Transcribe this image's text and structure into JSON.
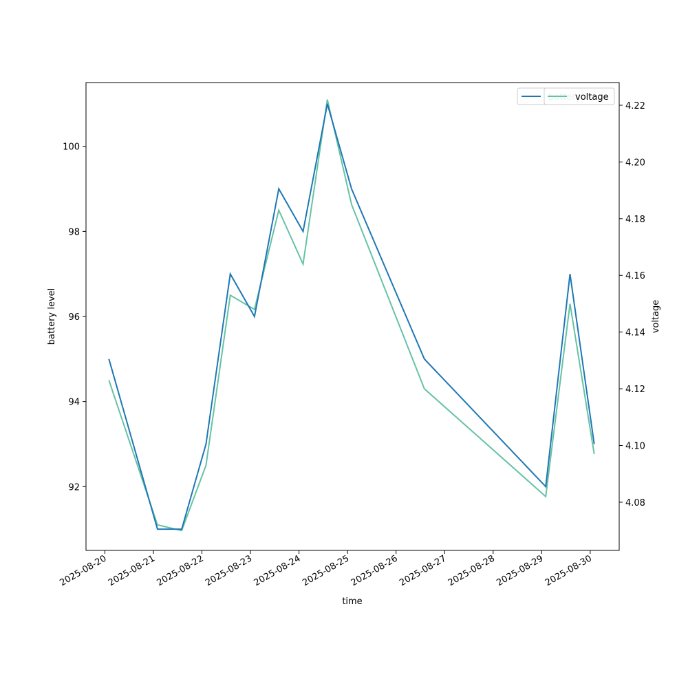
{
  "chart_data": {
    "type": "line",
    "xlabel": "time",
    "ylabel": "battery level",
    "ylabel_right": "voltage",
    "x_ticks": [
      "2025-08-20",
      "2025-08-21",
      "2025-08-22",
      "2025-08-23",
      "2025-08-24",
      "2025-08-25",
      "2025-08-26",
      "2025-08-27",
      "2025-08-28",
      "2025-08-29",
      "2025-08-30"
    ],
    "y_ticks": [
      92,
      94,
      96,
      98,
      100
    ],
    "y_ticks_right": [
      "4.08",
      "4.10",
      "4.12",
      "4.14",
      "4.16",
      "4.18",
      "4.20",
      "4.22"
    ],
    "ylim": [
      90.5,
      101.5
    ],
    "ylim_right": [
      4.063,
      4.228
    ],
    "xlim": [
      "2025-08-19 14:40",
      "2025-08-30 14:20"
    ],
    "legend_placement": "top-right",
    "grid": false,
    "series": [
      {
        "name": "battery",
        "axis": "left",
        "color": "#1f77b4",
        "points": [
          [
            "2025-08-20 02:00",
            95
          ],
          [
            "2025-08-21 02:00",
            91
          ],
          [
            "2025-08-21 14:00",
            91
          ],
          [
            "2025-08-22 02:00",
            93
          ],
          [
            "2025-08-22 14:00",
            97
          ],
          [
            "2025-08-23 02:00",
            96
          ],
          [
            "2025-08-23 14:00",
            99
          ],
          [
            "2025-08-24 02:00",
            98
          ],
          [
            "2025-08-24 14:00",
            101
          ],
          [
            "2025-08-25 02:00",
            99
          ],
          [
            "2025-08-26 14:00",
            95
          ],
          [
            "2025-08-29 02:00",
            92
          ],
          [
            "2025-08-29 14:00",
            97
          ],
          [
            "2025-08-30 02:00",
            93
          ]
        ]
      },
      {
        "name": "voltage",
        "axis": "right",
        "color": "#66c2a5",
        "points": [
          [
            "2025-08-20 02:00",
            4.123
          ],
          [
            "2025-08-21 02:00",
            4.072
          ],
          [
            "2025-08-21 14:00",
            4.07
          ],
          [
            "2025-08-22 02:00",
            4.093
          ],
          [
            "2025-08-22 14:00",
            4.153
          ],
          [
            "2025-08-23 02:00",
            4.148
          ],
          [
            "2025-08-23 14:00",
            4.183
          ],
          [
            "2025-08-24 02:00",
            4.164
          ],
          [
            "2025-08-24 14:00",
            4.222
          ],
          [
            "2025-08-25 02:00",
            4.185
          ],
          [
            "2025-08-26 14:00",
            4.12
          ],
          [
            "2025-08-29 02:00",
            4.082
          ],
          [
            "2025-08-29 14:00",
            4.15
          ],
          [
            "2025-08-30 02:00",
            4.097
          ]
        ]
      }
    ]
  }
}
